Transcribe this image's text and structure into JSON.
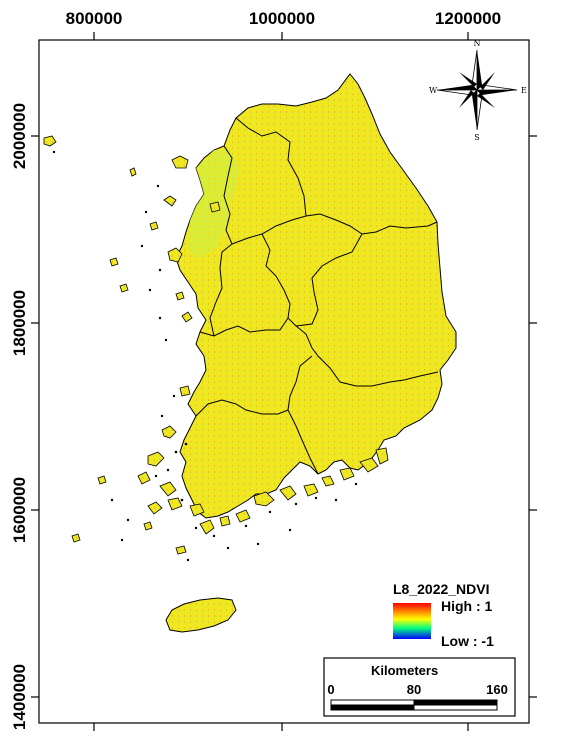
{
  "axes": {
    "top_ticks": [
      "800000",
      "1000000",
      "1200000"
    ],
    "left_ticks": [
      "2000000",
      "1800000",
      "1600000",
      "1400000"
    ]
  },
  "legend": {
    "title": "L8_2022_NDVI",
    "high": "High : 1",
    "low": "Low : -1",
    "colors": [
      "#ff0000",
      "#ffff00",
      "#00ff80",
      "#0000ff"
    ]
  },
  "scalebar": {
    "title": "Kilometers",
    "labels": [
      "0",
      "80",
      "160"
    ]
  },
  "compass": {
    "n": "N",
    "s": "S",
    "e": "E",
    "w": "W"
  },
  "colors": {
    "land": "#f0e81a",
    "land_green": "#c8f050",
    "outline": "#000000"
  }
}
